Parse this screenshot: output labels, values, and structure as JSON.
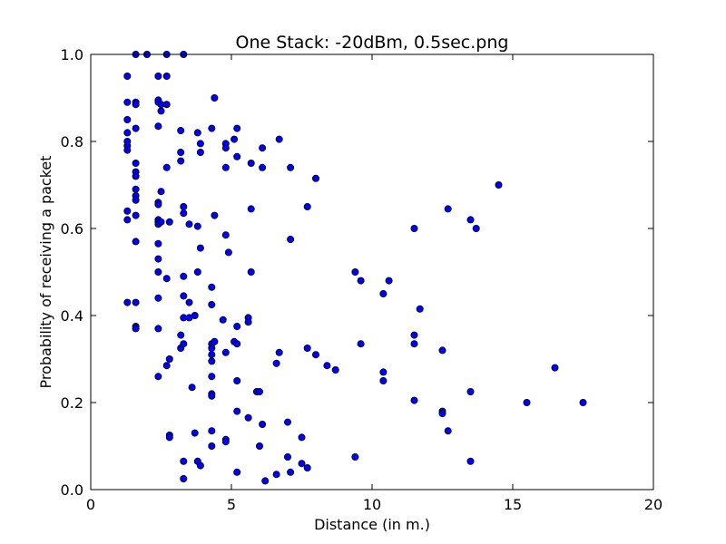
{
  "chart_data": {
    "type": "scatter",
    "title": "One Stack: -20dBm, 0.5sec.png",
    "xlabel": "Distance (in m.)",
    "ylabel": "Probability of receiving a packet",
    "xlim": [
      0,
      20
    ],
    "ylim": [
      0,
      1
    ],
    "xticks": [
      "0",
      "5",
      "10",
      "15",
      "20"
    ],
    "yticks": [
      "0.0",
      "0.2",
      "0.4",
      "0.6",
      "0.8",
      "1.0"
    ],
    "grid": false,
    "marker_color": "#0000ff",
    "marker_edge_color": "#000000",
    "series": [
      {
        "points": [
          [
            1.3,
            0.95
          ],
          [
            1.3,
            0.89
          ],
          [
            1.3,
            0.85
          ],
          [
            1.3,
            0.82
          ],
          [
            1.3,
            0.8
          ],
          [
            1.3,
            0.79
          ],
          [
            1.3,
            0.78
          ],
          [
            1.3,
            0.64
          ],
          [
            1.3,
            0.62
          ],
          [
            1.3,
            0.43
          ],
          [
            1.6,
            1.0
          ],
          [
            1.6,
            0.89
          ],
          [
            1.6,
            0.885
          ],
          [
            1.6,
            0.83
          ],
          [
            1.6,
            0.75
          ],
          [
            1.6,
            0.73
          ],
          [
            1.6,
            0.72
          ],
          [
            1.6,
            0.69
          ],
          [
            1.6,
            0.675
          ],
          [
            1.6,
            0.665
          ],
          [
            1.6,
            0.63
          ],
          [
            1.6,
            0.57
          ],
          [
            1.6,
            0.43
          ],
          [
            1.6,
            0.375
          ],
          [
            1.6,
            0.37
          ],
          [
            2.0,
            1.0
          ],
          [
            2.4,
            0.95
          ],
          [
            2.4,
            0.895
          ],
          [
            2.4,
            0.89
          ],
          [
            2.4,
            0.835
          ],
          [
            2.4,
            0.66
          ],
          [
            2.4,
            0.655
          ],
          [
            2.4,
            0.62
          ],
          [
            2.4,
            0.615
          ],
          [
            2.4,
            0.61
          ],
          [
            2.4,
            0.565
          ],
          [
            2.4,
            0.53
          ],
          [
            2.4,
            0.5
          ],
          [
            2.4,
            0.44
          ],
          [
            2.4,
            0.37
          ],
          [
            2.4,
            0.26
          ],
          [
            2.5,
            0.885
          ],
          [
            2.5,
            0.87
          ],
          [
            2.5,
            0.685
          ],
          [
            2.5,
            0.615
          ],
          [
            2.7,
            1.0
          ],
          [
            2.7,
            0.95
          ],
          [
            2.7,
            0.885
          ],
          [
            2.7,
            0.74
          ],
          [
            2.7,
            0.485
          ],
          [
            2.7,
            0.285
          ],
          [
            2.8,
            0.615
          ],
          [
            2.8,
            0.3
          ],
          [
            2.8,
            0.125
          ],
          [
            2.8,
            0.12
          ],
          [
            3.2,
            0.825
          ],
          [
            3.2,
            0.775
          ],
          [
            3.2,
            0.755
          ],
          [
            3.2,
            0.355
          ],
          [
            3.2,
            0.325
          ],
          [
            3.3,
            1.0
          ],
          [
            3.3,
            0.65
          ],
          [
            3.3,
            0.635
          ],
          [
            3.3,
            0.49
          ],
          [
            3.3,
            0.445
          ],
          [
            3.3,
            0.395
          ],
          [
            3.3,
            0.335
          ],
          [
            3.3,
            0.065
          ],
          [
            3.3,
            0.025
          ],
          [
            3.5,
            0.61
          ],
          [
            3.5,
            0.43
          ],
          [
            3.5,
            0.395
          ],
          [
            3.6,
            0.235
          ],
          [
            3.7,
            0.4
          ],
          [
            3.7,
            0.13
          ],
          [
            3.8,
            0.82
          ],
          [
            3.8,
            0.605
          ],
          [
            3.8,
            0.5
          ],
          [
            3.8,
            0.065
          ],
          [
            3.9,
            0.795
          ],
          [
            3.9,
            0.775
          ],
          [
            3.9,
            0.555
          ],
          [
            3.9,
            0.055
          ],
          [
            4.3,
            0.83
          ],
          [
            4.3,
            0.465
          ],
          [
            4.3,
            0.425
          ],
          [
            4.3,
            0.335
          ],
          [
            4.3,
            0.325
          ],
          [
            4.3,
            0.31
          ],
          [
            4.3,
            0.295
          ],
          [
            4.3,
            0.26
          ],
          [
            4.3,
            0.22
          ],
          [
            4.3,
            0.215
          ],
          [
            4.3,
            0.135
          ],
          [
            4.3,
            0.1
          ],
          [
            4.4,
            0.9
          ],
          [
            4.4,
            0.63
          ],
          [
            4.4,
            0.34
          ],
          [
            4.7,
            0.39
          ],
          [
            4.8,
            0.795
          ],
          [
            4.8,
            0.785
          ],
          [
            4.8,
            0.74
          ],
          [
            4.8,
            0.585
          ],
          [
            4.8,
            0.315
          ],
          [
            4.8,
            0.115
          ],
          [
            4.8,
            0.11
          ],
          [
            4.9,
            0.545
          ],
          [
            5.1,
            0.805
          ],
          [
            5.1,
            0.34
          ],
          [
            5.2,
            0.83
          ],
          [
            5.2,
            0.765
          ],
          [
            5.2,
            0.375
          ],
          [
            5.2,
            0.335
          ],
          [
            5.2,
            0.25
          ],
          [
            5.2,
            0.18
          ],
          [
            5.2,
            0.04
          ],
          [
            5.6,
            0.395
          ],
          [
            5.6,
            0.385
          ],
          [
            5.6,
            0.165
          ],
          [
            5.7,
            0.75
          ],
          [
            5.7,
            0.645
          ],
          [
            5.7,
            0.5
          ],
          [
            5.9,
            0.225
          ],
          [
            6.0,
            0.225
          ],
          [
            6.0,
            0.1
          ],
          [
            6.1,
            0.785
          ],
          [
            6.1,
            0.74
          ],
          [
            6.1,
            0.15
          ],
          [
            6.2,
            0.02
          ],
          [
            6.6,
            0.29
          ],
          [
            6.6,
            0.035
          ],
          [
            6.7,
            0.805
          ],
          [
            6.7,
            0.315
          ],
          [
            7.0,
            0.155
          ],
          [
            7.0,
            0.075
          ],
          [
            7.1,
            0.74
          ],
          [
            7.1,
            0.575
          ],
          [
            7.1,
            0.04
          ],
          [
            7.5,
            0.12
          ],
          [
            7.5,
            0.06
          ],
          [
            7.7,
            0.65
          ],
          [
            7.7,
            0.325
          ],
          [
            7.7,
            0.05
          ],
          [
            8.0,
            0.715
          ],
          [
            8.0,
            0.31
          ],
          [
            8.4,
            0.285
          ],
          [
            8.7,
            0.275
          ],
          [
            9.4,
            0.5
          ],
          [
            9.4,
            0.075
          ],
          [
            9.6,
            0.48
          ],
          [
            9.6,
            0.335
          ],
          [
            10.4,
            0.45
          ],
          [
            10.4,
            0.27
          ],
          [
            10.4,
            0.25
          ],
          [
            10.6,
            0.48
          ],
          [
            11.5,
            0.6
          ],
          [
            11.5,
            0.355
          ],
          [
            11.5,
            0.335
          ],
          [
            11.5,
            0.205
          ],
          [
            11.7,
            0.415
          ],
          [
            12.5,
            0.32
          ],
          [
            12.5,
            0.18
          ],
          [
            12.5,
            0.175
          ],
          [
            12.7,
            0.645
          ],
          [
            12.7,
            0.135
          ],
          [
            13.5,
            0.62
          ],
          [
            13.5,
            0.225
          ],
          [
            13.5,
            0.065
          ],
          [
            13.7,
            0.6
          ],
          [
            14.5,
            0.7
          ],
          [
            15.5,
            0.2
          ],
          [
            16.5,
            0.28
          ],
          [
            17.5,
            0.2
          ]
        ]
      }
    ]
  }
}
